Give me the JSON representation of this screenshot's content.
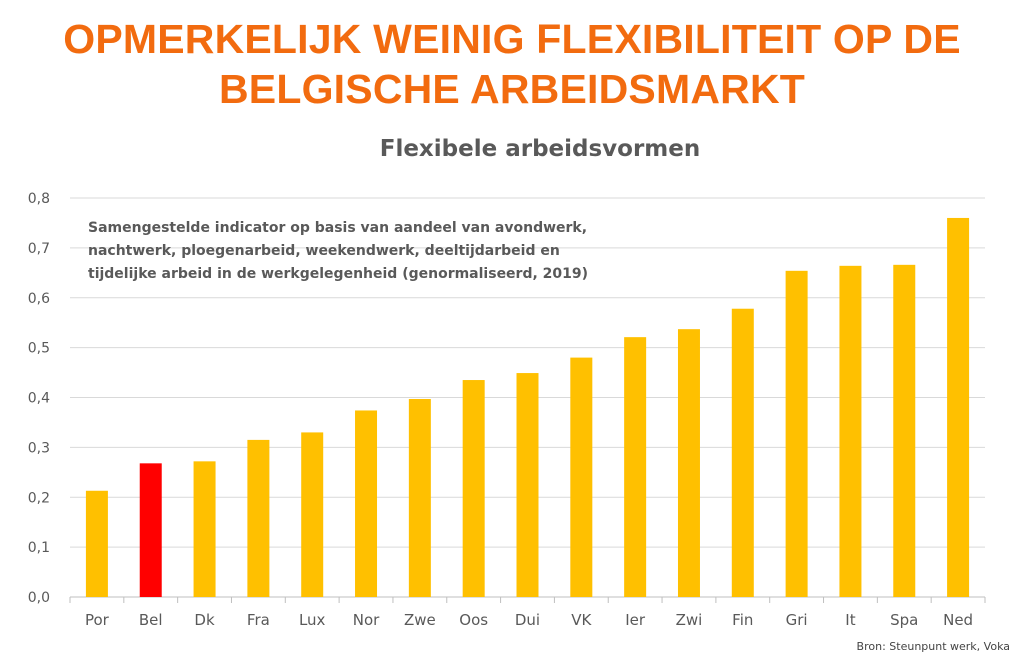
{
  "headline": {
    "line1": "OPMERKELIJK WEINIG FLEXIBILITEIT OP DE",
    "line2": "BELGISCHE ARBEIDSMARKT"
  },
  "source": "Bron: Steunpunt werk, Voka",
  "colors": {
    "headline": "#f26b0f",
    "bar": "#ffc000",
    "highlight": "#ff0000",
    "grid": "#d9d9d9",
    "text": "#595959"
  },
  "chart_data": {
    "type": "bar",
    "title": "Flexibele arbeidsvormen",
    "xlabel": "",
    "ylabel": "",
    "annotation": [
      "Samengestelde indicator op basis van aandeel van avondwerk,",
      "nachtwerk, ploegenarbeid, weekendwerk, deeltijdarbeid en",
      "tijdelijke arbeid in de werkgelegenheid (genormaliseerd, 2019)"
    ],
    "categories": [
      "Por",
      "Bel",
      "Dk",
      "Fra",
      "Lux",
      "Nor",
      "Zwe",
      "Oos",
      "Dui",
      "VK",
      "Ier",
      "Zwi",
      "Fin",
      "Gri",
      "It",
      "Spa",
      "Ned"
    ],
    "values": [
      0.213,
      0.268,
      0.272,
      0.315,
      0.33,
      0.374,
      0.397,
      0.435,
      0.449,
      0.48,
      0.521,
      0.537,
      0.578,
      0.654,
      0.664,
      0.666,
      0.76
    ],
    "highlight": "Bel",
    "ylim": [
      0,
      0.8
    ],
    "yticks": [
      "0,0",
      "0,1",
      "0,2",
      "0,3",
      "0,4",
      "0,5",
      "0,6",
      "0,7",
      "0,8"
    ],
    "grid": true,
    "legend": "none"
  }
}
